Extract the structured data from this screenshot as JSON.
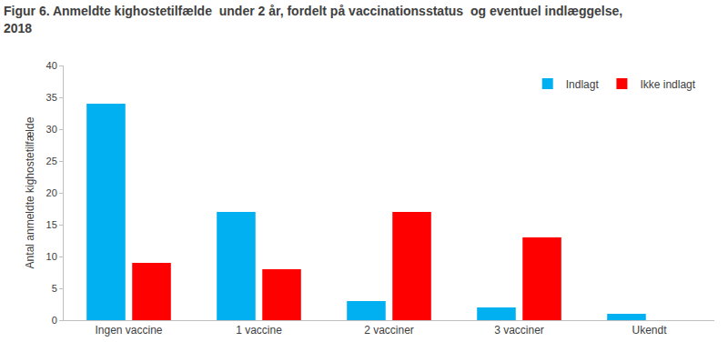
{
  "chart_data": {
    "type": "bar",
    "title": "Figur 6. Anmeldte kighostetilfælde  under 2 år, fordelt på vaccinationsstatus  og eventuel indlæggelse,\n2018",
    "y_label": "Antal anmeldte kighostetilfælde",
    "categories": [
      "Ingen vaccine",
      "1 vaccine",
      "2 vacciner",
      "3 vacciner",
      "Ukendt"
    ],
    "series": [
      {
        "name": "Indlagt",
        "color": "#00b0f0",
        "values": [
          34,
          17,
          3,
          2,
          1
        ]
      },
      {
        "name": "Ikke indlagt",
        "color": "#ff0000",
        "values": [
          9,
          8,
          17,
          13,
          0
        ]
      }
    ],
    "ylim": [
      0,
      40
    ],
    "yticks": [
      0,
      5,
      10,
      15,
      20,
      25,
      30,
      35,
      40
    ],
    "grid": false,
    "legend": "top right"
  }
}
